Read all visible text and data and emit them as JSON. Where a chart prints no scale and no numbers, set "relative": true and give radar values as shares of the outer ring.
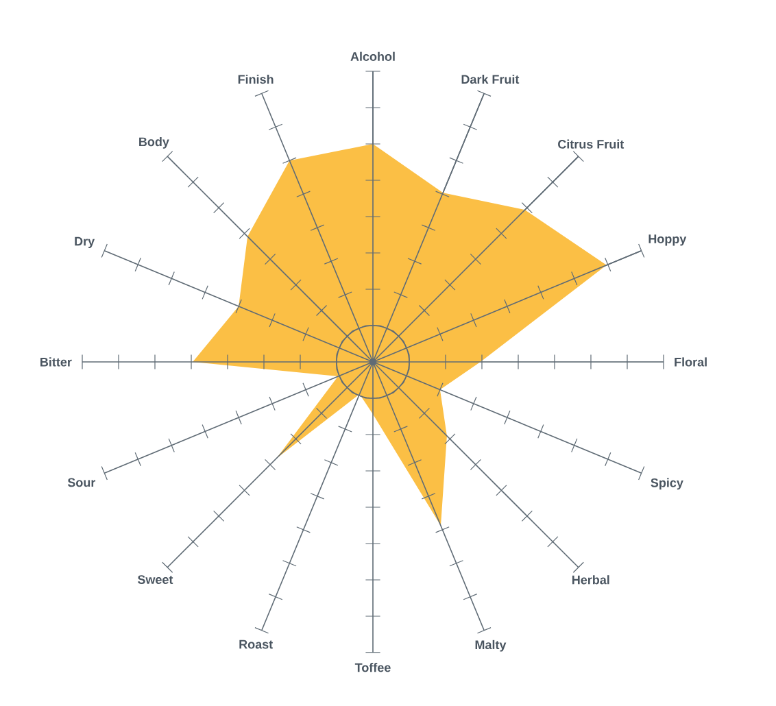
{
  "chart_data": {
    "type": "radar",
    "relative": true,
    "categories": [
      "Alcohol",
      "Dark Fruit",
      "Citrus Fruit",
      "Hoppy",
      "Floral",
      "Spicy",
      "Herbal",
      "Malty",
      "Toffee",
      "Roast",
      "Sweet",
      "Sour",
      "Bitter",
      "Dry",
      "Body",
      "Finish"
    ],
    "series": [
      {
        "color": "#fbbf45",
        "values": [
          0.75,
          0.63,
          0.74,
          0.87,
          0.37,
          0.25,
          0.36,
          0.61,
          0.18,
          0.12,
          0.47,
          0.13,
          0.62,
          0.5,
          0.61,
          0.75
        ]
      }
    ]
  }
}
